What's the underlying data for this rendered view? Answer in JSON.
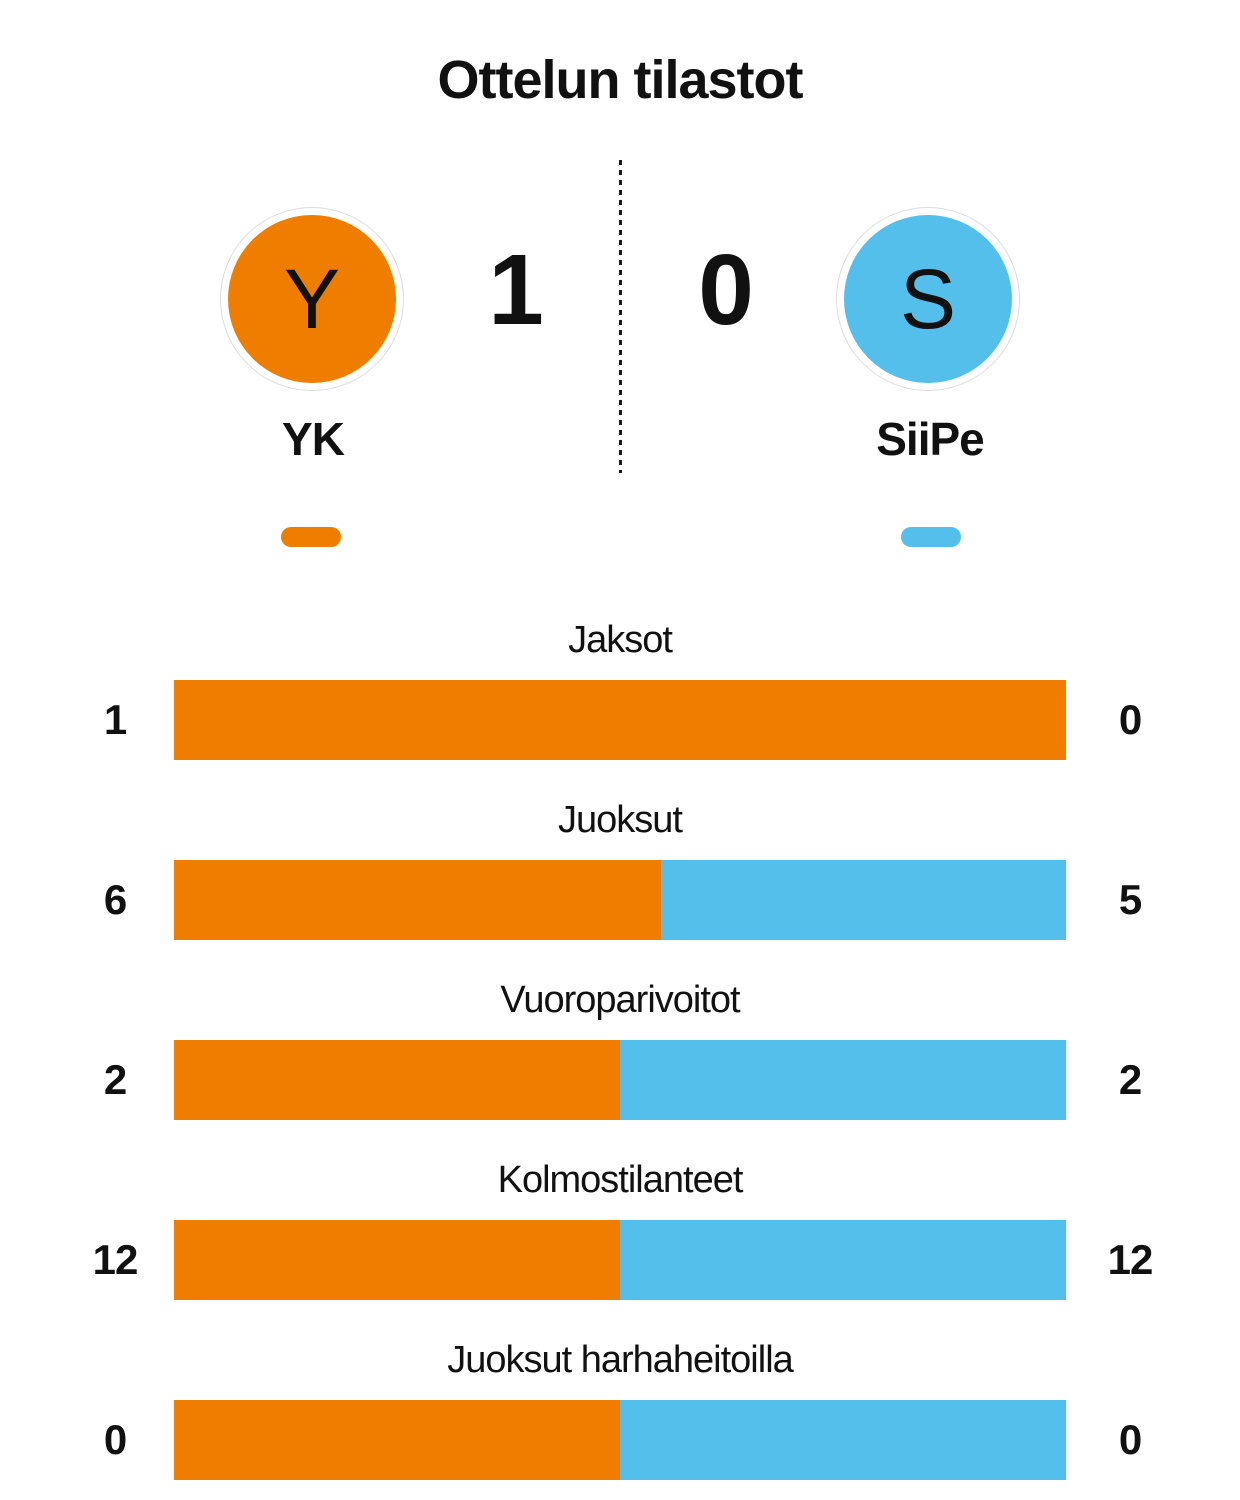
{
  "title": "Ottelun tilastot",
  "colors": {
    "home": "#ee7d00",
    "away": "#55bfec",
    "text": "#111111",
    "badge_ring": "#dddddd",
    "divider": "#1a1a1a",
    "background": "#ffffff"
  },
  "teams": {
    "home": {
      "initial": "Y",
      "name": "YK",
      "score": "1",
      "color": "#ee7d00"
    },
    "away": {
      "initial": "S",
      "name": "SiiPe",
      "score": "0",
      "color": "#55bfec"
    }
  },
  "chart_data": {
    "type": "bar",
    "subtype": "horizontal-split-bars",
    "title": "Ottelun tilastot",
    "categories": [
      "Jaksot",
      "Juoksut",
      "Vuoroparivoitot",
      "Kolmostilanteet",
      "Juoksut harhaheitoilla"
    ],
    "series": [
      {
        "name": "YK",
        "color": "#ee7d00",
        "values": [
          1,
          6,
          2,
          12,
          0
        ]
      },
      {
        "name": "SiiPe",
        "color": "#55bfec",
        "values": [
          0,
          5,
          2,
          12,
          0
        ]
      }
    ],
    "value_labels": {
      "left": [
        "1",
        "6",
        "2",
        "12",
        "0"
      ],
      "right": [
        "0",
        "5",
        "2",
        "12",
        "0"
      ]
    },
    "legend_position": "top",
    "grid": false,
    "note": "Each bar is split proportionally home/(home+away); 50/50 when both values are 0"
  }
}
